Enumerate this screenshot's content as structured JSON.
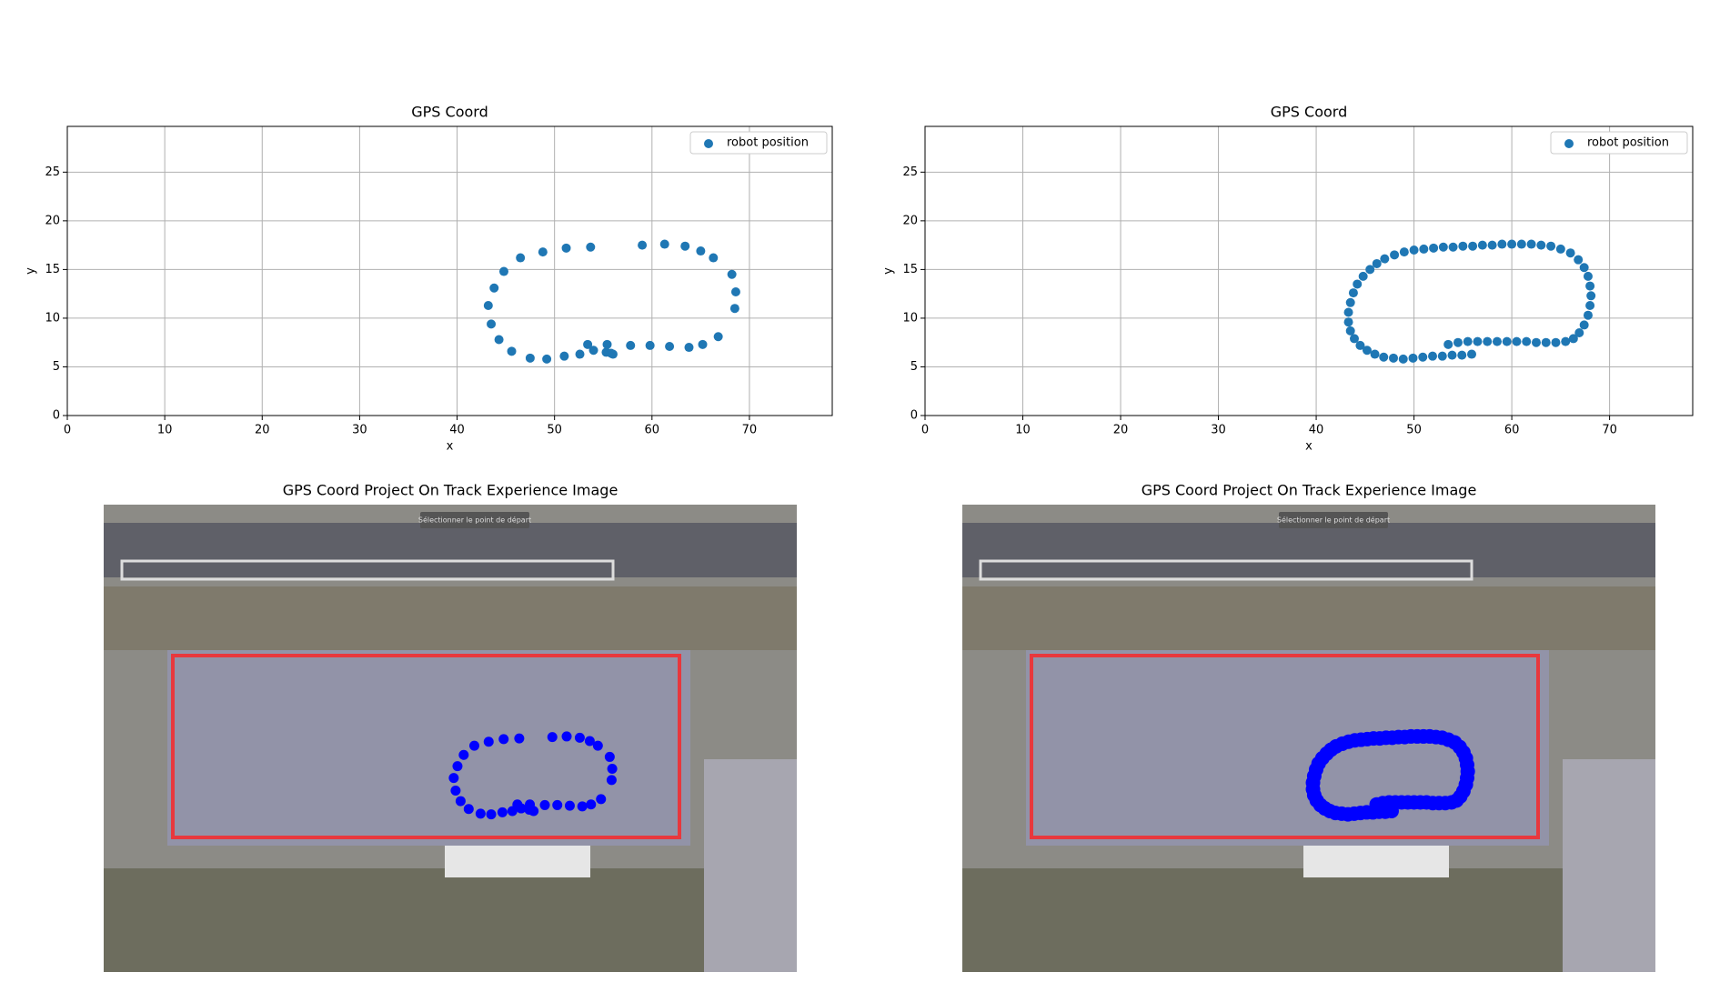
{
  "chart_data": [
    {
      "type": "scatter",
      "title": "GPS Coord",
      "x_label": "x",
      "y_label": "y",
      "xlim": [
        0,
        78.5
      ],
      "ylim": [
        0,
        29.7
      ],
      "xticks": [
        0,
        10,
        20,
        30,
        40,
        50,
        60,
        70
      ],
      "yticks": [
        0,
        5,
        10,
        15,
        20,
        25
      ],
      "grid": true,
      "legend": "upper right",
      "series": [
        {
          "name": "robot position",
          "color": "#1f77b4",
          "x": [
            43.2,
            43.5,
            43.8,
            44.3,
            44.8,
            45.6,
            46.5,
            47.5,
            48.8,
            49.2,
            51,
            51.2,
            52.6,
            53.4,
            53.7,
            54,
            55.3,
            55.4,
            55.8,
            56,
            57.8,
            59,
            59.8,
            61.3,
            61.8,
            63.4,
            63.8,
            65,
            65.2,
            66.8,
            66.3,
            68.2,
            68.5,
            68.6
          ],
          "values": [
            11.3,
            9.4,
            13.1,
            7.8,
            14.8,
            6.6,
            16.2,
            5.9,
            16.8,
            5.8,
            6.1,
            17.2,
            6.3,
            7.3,
            17.3,
            6.7,
            6.5,
            7.3,
            6.4,
            6.3,
            7.2,
            17.5,
            7.2,
            17.6,
            7.1,
            17.4,
            7,
            16.9,
            7.3,
            8.1,
            16.2,
            14.5,
            11,
            12.7
          ]
        }
      ]
    },
    {
      "type": "scatter",
      "title": "GPS Coord",
      "x_label": "x",
      "y_label": "y",
      "xlim": [
        0,
        78.5
      ],
      "ylim": [
        0,
        29.7
      ],
      "xticks": [
        0,
        10,
        20,
        30,
        40,
        50,
        60,
        70
      ],
      "yticks": [
        0,
        5,
        10,
        15,
        20,
        25
      ],
      "grid": true,
      "legend": "upper right",
      "series": [
        {
          "name": "robot position",
          "color": "#1f77b4",
          "x": [
            53.5,
            54.5,
            55.5,
            56.5,
            57.5,
            58.5,
            59.5,
            60.5,
            61.5,
            62.5,
            63.5,
            64.5,
            65.5,
            66.3,
            66.9,
            67.4,
            67.8,
            68,
            68.1,
            68,
            67.8,
            67.4,
            66.8,
            66,
            65,
            64,
            63,
            62,
            61,
            60,
            59,
            58,
            57,
            56,
            55,
            54,
            53,
            52,
            51,
            50,
            49,
            48,
            47,
            46.2,
            45.5,
            44.8,
            44.2,
            43.8,
            43.5,
            43.3,
            43.3,
            43.5,
            43.9,
            44.5,
            45.2,
            46,
            46.9,
            47.9,
            48.9,
            49.9,
            50.9,
            51.9,
            52.9,
            53.9,
            54.9,
            55.9
          ],
          "values": [
            7.3,
            7.5,
            7.6,
            7.6,
            7.6,
            7.6,
            7.6,
            7.6,
            7.6,
            7.5,
            7.5,
            7.5,
            7.6,
            7.9,
            8.5,
            9.3,
            10.3,
            11.3,
            12.3,
            13.3,
            14.3,
            15.2,
            16,
            16.7,
            17.1,
            17.4,
            17.5,
            17.6,
            17.6,
            17.6,
            17.6,
            17.5,
            17.5,
            17.4,
            17.4,
            17.3,
            17.3,
            17.2,
            17.1,
            17,
            16.8,
            16.5,
            16.1,
            15.6,
            15,
            14.3,
            13.5,
            12.6,
            11.6,
            10.6,
            9.6,
            8.7,
            7.9,
            7.2,
            6.7,
            6.3,
            6,
            5.9,
            5.8,
            5.9,
            6,
            6.1,
            6.1,
            6.2,
            6.2,
            6.3
          ]
        }
      ]
    }
  ],
  "image_panels": [
    {
      "title": "GPS Coord Project On Track Experience Image",
      "caption": "Sélectionner le point de départ",
      "overlay_color": "#0000ff",
      "source": 0
    },
    {
      "title": "GPS Coord Project On Track Experience Image",
      "caption": "Sélectionner le point de départ",
      "overlay_color": "#0000ff",
      "source": 1
    }
  ]
}
